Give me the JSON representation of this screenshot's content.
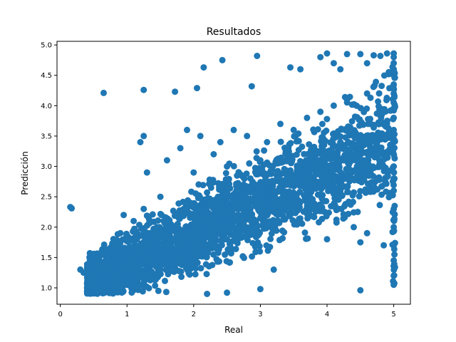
{
  "chart_data": {
    "type": "scatter",
    "title": "Resultados",
    "xlabel": "Real",
    "ylabel": "Predicción",
    "xlim": [
      -0.05,
      5.25
    ],
    "ylim": [
      0.73,
      5.06
    ],
    "xticks": [
      0,
      1,
      2,
      3,
      4,
      5
    ],
    "yticks": [
      1.0,
      1.5,
      2.0,
      2.5,
      3.0,
      3.5,
      4.0,
      4.5,
      5.0
    ],
    "xtick_labels": [
      "0",
      "1",
      "2",
      "3",
      "4",
      "5"
    ],
    "ytick_labels": [
      "1.0",
      "1.5",
      "2.0",
      "2.5",
      "3.0",
      "3.5",
      "4.0",
      "4.5",
      "5.0"
    ],
    "grid": false,
    "marker_color": "#1f77b4",
    "series": [
      {
        "x": [
          0.15,
          0.17,
          0.3,
          0.35,
          0.45,
          0.5,
          0.55,
          0.6,
          0.62,
          0.65,
          0.7,
          0.75,
          0.8,
          0.9,
          1.0,
          1.1,
          1.25,
          0.66,
          1.25,
          1.72,
          2.05,
          2.15,
          2.43,
          2.87,
          2.95,
          3.45,
          3.6,
          3.9,
          4.0,
          4.1,
          4.2,
          4.3,
          4.5,
          4.6,
          4.7,
          4.8,
          4.9,
          4.5,
          2.2,
          2.5,
          3.0,
          3.2,
          4.0,
          4.4,
          4.5,
          4.6,
          4.85,
          1.2,
          1.25,
          1.3,
          1.6,
          1.8,
          1.9,
          2.1,
          2.3,
          2.4,
          2.6,
          2.8,
          3.1,
          3.3,
          3.5,
          3.7,
          3.9,
          4.1,
          4.3,
          4.6,
          4.8,
          0.95,
          1.5,
          2.0,
          2.5,
          3.0,
          3.4,
          3.8,
          4.2,
          4.4,
          2.7,
          2.9,
          3.6,
          4.7,
          4.45,
          1.05,
          1.15,
          1.35,
          1.45,
          1.55,
          1.65,
          1.75,
          1.85,
          1.95,
          0.85,
          0.92,
          1.02,
          1.12,
          1.22,
          1.32,
          1.42,
          2.25,
          2.35,
          2.55,
          2.65,
          2.75,
          2.85,
          3.05,
          3.15,
          3.25,
          3.35,
          3.55,
          3.75,
          3.85,
          4.05,
          4.25,
          4.35,
          4.55,
          4.65,
          4.75,
          4.95,
          0.55,
          0.6,
          0.7,
          0.8,
          0.9,
          1.0,
          1.1,
          1.2,
          1.3,
          1.4,
          1.6,
          1.7,
          1.8,
          2.0,
          2.2,
          2.4,
          2.6,
          2.8,
          3.0,
          3.2,
          3.4,
          1.5,
          1.7,
          1.9,
          2.1,
          2.3,
          2.5,
          0.5,
          0.75,
          1.0,
          1.25,
          1.5,
          1.75,
          2.0,
          2.25,
          2.5,
          2.75,
          3.0,
          3.25,
          3.5,
          3.75
        ],
        "y": [
          2.33,
          2.31,
          1.3,
          1.25,
          1.05,
          0.95,
          1.1,
          1.3,
          1.6,
          4.21,
          1.5,
          1.4,
          1.7,
          1.9,
          1.6,
          2.1,
          4.26,
          1.2,
          2.3,
          4.23,
          4.29,
          4.63,
          4.75,
          4.32,
          4.82,
          4.63,
          4.6,
          4.8,
          4.86,
          4.7,
          4.6,
          4.85,
          4.85,
          4.7,
          4.83,
          4.82,
          4.86,
          0.96,
          0.9,
          0.92,
          0.98,
          1.3,
          1.8,
          2.0,
          1.75,
          1.9,
          1.7,
          3.4,
          3.5,
          2.9,
          3.1,
          3.3,
          3.6,
          3.5,
          3.2,
          3.4,
          3.6,
          3.5,
          3.4,
          3.7,
          3.6,
          3.8,
          3.9,
          4.0,
          4.1,
          4.2,
          3.9,
          2.2,
          2.5,
          2.9,
          3.0,
          3.1,
          3.2,
          3.3,
          3.4,
          3.5,
          2.6,
          2.7,
          2.9,
          3.3,
          3.0,
          1.6,
          1.8,
          1.9,
          2.0,
          2.1,
          2.0,
          2.2,
          2.3,
          2.4,
          1.2,
          1.3,
          1.4,
          1.5,
          1.6,
          1.7,
          1.8,
          2.2,
          2.4,
          2.5,
          2.6,
          2.7,
          2.8,
          2.7,
          2.6,
          2.8,
          2.9,
          2.8,
          3.0,
          2.9,
          3.0,
          3.1,
          3.2,
          3.1,
          3.3,
          3.4,
          3.5,
          0.95,
          1.0,
          1.05,
          1.1,
          1.15,
          1.2,
          1.3,
          1.4,
          1.5,
          1.6,
          1.7,
          1.8,
          1.9,
          2.0,
          2.1,
          2.2,
          2.3,
          2.4,
          2.5,
          2.6,
          2.7,
          1.3,
          1.4,
          1.5,
          1.6,
          1.7,
          1.8,
          1.15,
          1.25,
          1.35,
          1.45,
          1.55,
          1.65,
          1.75,
          1.85,
          1.95,
          2.05,
          2.15,
          2.25,
          2.35,
          2.45
        ]
      }
    ],
    "cap_x": 5.0,
    "cap_y": [
      1.05,
      1.2,
      1.45,
      1.7,
      2.0,
      2.3,
      2.6,
      2.8,
      3.0,
      3.2,
      3.45,
      3.6,
      3.8,
      3.95,
      4.05,
      4.2,
      4.35,
      4.5,
      4.6,
      4.7,
      4.8,
      4.86
    ]
  }
}
